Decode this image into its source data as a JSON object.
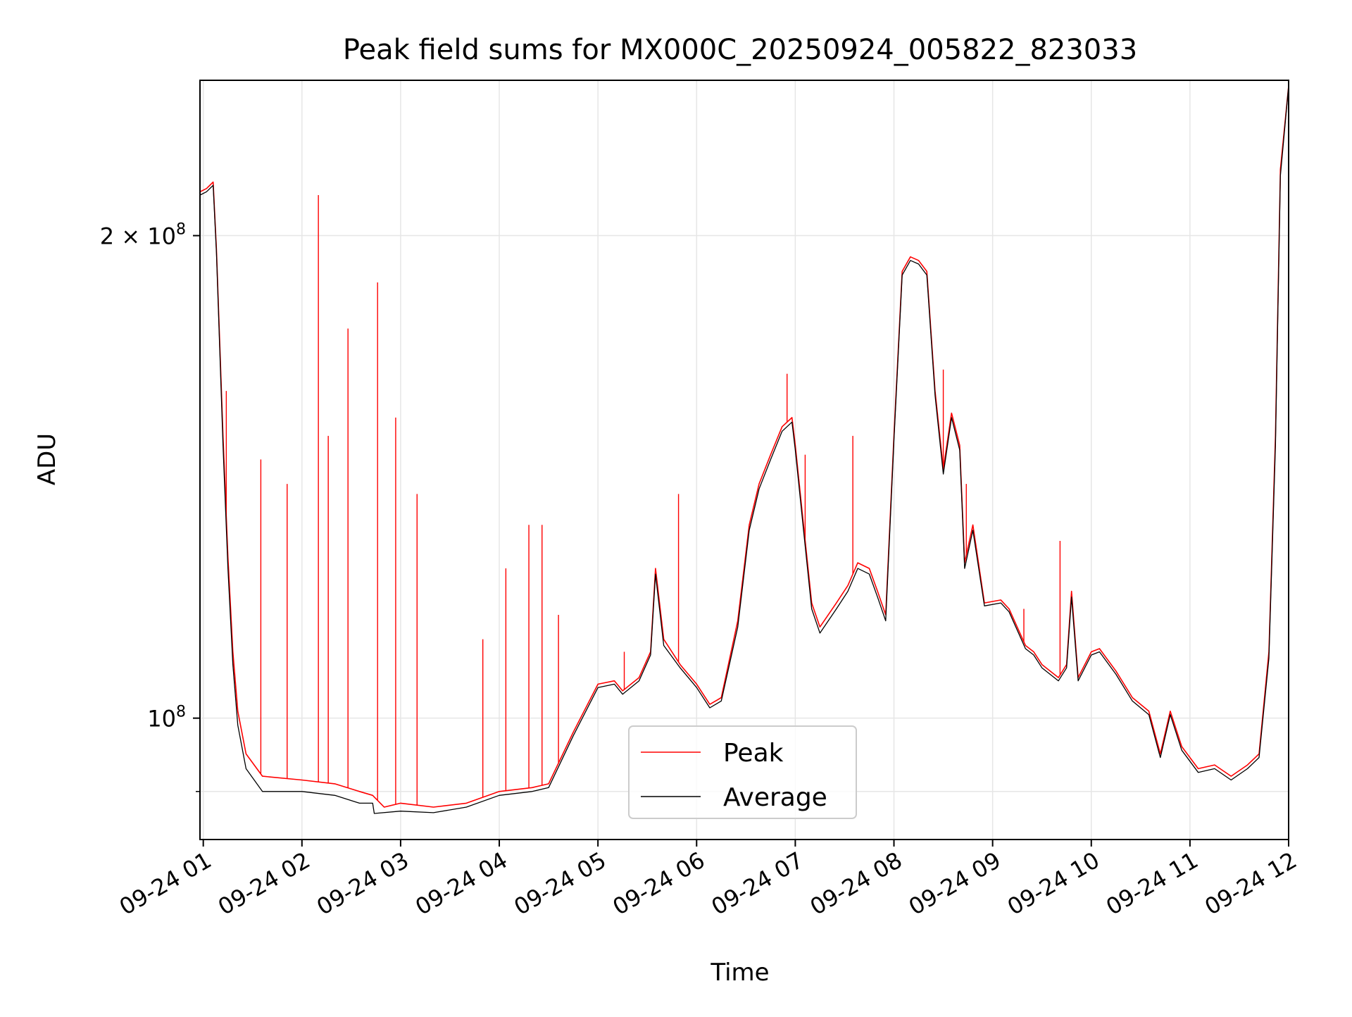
{
  "chart_data": {
    "type": "line",
    "title": "Peak field sums for MX000C_20250924_005822_823033",
    "xlabel": "Time",
    "ylabel": "ADU",
    "yscale": "log",
    "x_is_time": true,
    "xlim": [
      "2025-09-24T00:58",
      "2025-09-24T12:00"
    ],
    "ylim": [
      84000000,
      250000000
    ],
    "x_ticks": [
      {
        "t": "2025-09-24T01:00",
        "label": "09-24 01"
      },
      {
        "t": "2025-09-24T02:00",
        "label": "09-24 02"
      },
      {
        "t": "2025-09-24T03:00",
        "label": "09-24 03"
      },
      {
        "t": "2025-09-24T04:00",
        "label": "09-24 04"
      },
      {
        "t": "2025-09-24T05:00",
        "label": "09-24 05"
      },
      {
        "t": "2025-09-24T06:00",
        "label": "09-24 06"
      },
      {
        "t": "2025-09-24T07:00",
        "label": "09-24 07"
      },
      {
        "t": "2025-09-24T08:00",
        "label": "09-24 08"
      },
      {
        "t": "2025-09-24T09:00",
        "label": "09-24 09"
      },
      {
        "t": "2025-09-24T10:00",
        "label": "09-24 10"
      },
      {
        "t": "2025-09-24T11:00",
        "label": "09-24 11"
      },
      {
        "t": "2025-09-24T12:00",
        "label": "09-24 12"
      }
    ],
    "y_major_ticks": [
      {
        "value": 100000000,
        "base": "10",
        "exp": "8",
        "mantissa": ""
      },
      {
        "value": 200000000,
        "base": "10",
        "exp": "8",
        "mantissa": "2"
      }
    ],
    "y_minor_gridlines": [
      90000000
    ],
    "grid": true,
    "legend_placement": "lower-center",
    "series": [
      {
        "name": "Peak",
        "color": "#ff0000",
        "points": [
          [
            "2025-09-24T00:58",
            213000000
          ],
          [
            "2025-09-24T01:02",
            214000000
          ],
          [
            "2025-09-24T01:06",
            216000000
          ],
          [
            "2025-09-24T01:08",
            196000000
          ],
          [
            "2025-09-24T01:12",
            150000000
          ],
          [
            "2025-09-24T01:15",
            126000000
          ],
          [
            "2025-09-24T01:18",
            110000000
          ],
          [
            "2025-09-24T01:21",
            101000000
          ],
          [
            "2025-09-24T01:26",
            95000000
          ],
          [
            "2025-09-24T01:36",
            92000000
          ],
          [
            "2025-09-24T02:00",
            91500000
          ],
          [
            "2025-09-24T02:20",
            91000000
          ],
          [
            "2025-09-24T02:35",
            90000000
          ],
          [
            "2025-09-24T02:43",
            89500000
          ],
          [
            "2025-09-24T02:50",
            88000000
          ],
          [
            "2025-09-24T03:00",
            88500000
          ],
          [
            "2025-09-24T03:20",
            88000000
          ],
          [
            "2025-09-24T03:40",
            88500000
          ],
          [
            "2025-09-24T04:00",
            90000000
          ],
          [
            "2025-09-24T04:20",
            90500000
          ],
          [
            "2025-09-24T04:30",
            91000000
          ],
          [
            "2025-09-24T04:45",
            98000000
          ],
          [
            "2025-09-24T05:00",
            105000000
          ],
          [
            "2025-09-24T05:10",
            105500000
          ],
          [
            "2025-09-24T05:15",
            104000000
          ],
          [
            "2025-09-24T05:25",
            106000000
          ],
          [
            "2025-09-24T05:32",
            110000000
          ],
          [
            "2025-09-24T05:35",
            124000000
          ],
          [
            "2025-09-24T05:40",
            112000000
          ],
          [
            "2025-09-24T05:50",
            108000000
          ],
          [
            "2025-09-24T06:00",
            105000000
          ],
          [
            "2025-09-24T06:08",
            102000000
          ],
          [
            "2025-09-24T06:15",
            103000000
          ],
          [
            "2025-09-24T06:25",
            115000000
          ],
          [
            "2025-09-24T06:32",
            132000000
          ],
          [
            "2025-09-24T06:38",
            140000000
          ],
          [
            "2025-09-24T06:45",
            146000000
          ],
          [
            "2025-09-24T06:52",
            152000000
          ],
          [
            "2025-09-24T06:58",
            154000000
          ],
          [
            "2025-09-24T07:00",
            148000000
          ],
          [
            "2025-09-24T07:05",
            132000000
          ],
          [
            "2025-09-24T07:10",
            118000000
          ],
          [
            "2025-09-24T07:15",
            114000000
          ],
          [
            "2025-09-24T07:25",
            118000000
          ],
          [
            "2025-09-24T07:32",
            121000000
          ],
          [
            "2025-09-24T07:38",
            125000000
          ],
          [
            "2025-09-24T07:45",
            124000000
          ],
          [
            "2025-09-24T07:50",
            120000000
          ],
          [
            "2025-09-24T07:55",
            116000000
          ],
          [
            "2025-09-24T08:00",
            150000000
          ],
          [
            "2025-09-24T08:05",
            190000000
          ],
          [
            "2025-09-24T08:10",
            194000000
          ],
          [
            "2025-09-24T08:15",
            193000000
          ],
          [
            "2025-09-24T08:20",
            190000000
          ],
          [
            "2025-09-24T08:25",
            160000000
          ],
          [
            "2025-09-24T08:30",
            143000000
          ],
          [
            "2025-09-24T08:35",
            155000000
          ],
          [
            "2025-09-24T08:40",
            148000000
          ],
          [
            "2025-09-24T08:43",
            125000000
          ],
          [
            "2025-09-24T08:48",
            132000000
          ],
          [
            "2025-09-24T08:55",
            118000000
          ],
          [
            "2025-09-24T09:05",
            118500000
          ],
          [
            "2025-09-24T09:10",
            117000000
          ],
          [
            "2025-09-24T09:20",
            111000000
          ],
          [
            "2025-09-24T09:25",
            110000000
          ],
          [
            "2025-09-24T09:30",
            108000000
          ],
          [
            "2025-09-24T09:40",
            106000000
          ],
          [
            "2025-09-24T09:45",
            108000000
          ],
          [
            "2025-09-24T09:48",
            120000000
          ],
          [
            "2025-09-24T09:52",
            106000000
          ],
          [
            "2025-09-24T10:00",
            110000000
          ],
          [
            "2025-09-24T10:05",
            110500000
          ],
          [
            "2025-09-24T10:15",
            107000000
          ],
          [
            "2025-09-24T10:25",
            103000000
          ],
          [
            "2025-09-24T10:35",
            101000000
          ],
          [
            "2025-09-24T10:42",
            95000000
          ],
          [
            "2025-09-24T10:48",
            101000000
          ],
          [
            "2025-09-24T10:55",
            96000000
          ],
          [
            "2025-09-24T11:05",
            93000000
          ],
          [
            "2025-09-24T11:15",
            93500000
          ],
          [
            "2025-09-24T11:25",
            92000000
          ],
          [
            "2025-09-24T11:35",
            93500000
          ],
          [
            "2025-09-24T11:42",
            95000000
          ],
          [
            "2025-09-24T11:48",
            110000000
          ],
          [
            "2025-09-24T11:52",
            150000000
          ],
          [
            "2025-09-24T11:55",
            220000000
          ],
          [
            "2025-09-24T12:00",
            248000000
          ]
        ],
        "spikes": [
          [
            "2025-09-24T01:14",
            160000000
          ],
          [
            "2025-09-24T01:35",
            145000000
          ],
          [
            "2025-09-24T01:51",
            140000000
          ],
          [
            "2025-09-24T02:10",
            212000000
          ],
          [
            "2025-09-24T02:16",
            150000000
          ],
          [
            "2025-09-24T02:28",
            175000000
          ],
          [
            "2025-09-24T02:46",
            187000000
          ],
          [
            "2025-09-24T02:57",
            154000000
          ],
          [
            "2025-09-24T03:10",
            138000000
          ],
          [
            "2025-09-24T03:50",
            112000000
          ],
          [
            "2025-09-24T04:04",
            124000000
          ],
          [
            "2025-09-24T04:18",
            132000000
          ],
          [
            "2025-09-24T04:26",
            132000000
          ],
          [
            "2025-09-24T04:36",
            116000000
          ],
          [
            "2025-09-24T05:16",
            110000000
          ],
          [
            "2025-09-24T05:49",
            138000000
          ],
          [
            "2025-09-24T06:55",
            164000000
          ],
          [
            "2025-09-24T07:06",
            146000000
          ],
          [
            "2025-09-24T07:35",
            150000000
          ],
          [
            "2025-09-24T08:30",
            165000000
          ],
          [
            "2025-09-24T08:44",
            140000000
          ],
          [
            "2025-09-24T09:19",
            117000000
          ],
          [
            "2025-09-24T09:41",
            129000000
          ]
        ]
      },
      {
        "name": "Average",
        "color": "#000000",
        "points": [
          [
            "2025-09-24T00:58",
            212000000
          ],
          [
            "2025-09-24T01:02",
            213000000
          ],
          [
            "2025-09-24T01:06",
            215000000
          ],
          [
            "2025-09-24T01:08",
            195000000
          ],
          [
            "2025-09-24T01:12",
            148000000
          ],
          [
            "2025-09-24T01:15",
            124000000
          ],
          [
            "2025-09-24T01:18",
            108000000
          ],
          [
            "2025-09-24T01:21",
            99000000
          ],
          [
            "2025-09-24T01:26",
            93000000
          ],
          [
            "2025-09-24T01:36",
            90000000
          ],
          [
            "2025-09-24T02:00",
            90000000
          ],
          [
            "2025-09-24T02:20",
            89500000
          ],
          [
            "2025-09-24T02:35",
            88500000
          ],
          [
            "2025-09-24T02:43",
            88500000
          ],
          [
            "2025-09-24T02:44",
            87200000
          ],
          [
            "2025-09-24T03:00",
            87500000
          ],
          [
            "2025-09-24T03:20",
            87300000
          ],
          [
            "2025-09-24T03:40",
            88000000
          ],
          [
            "2025-09-24T04:00",
            89500000
          ],
          [
            "2025-09-24T04:20",
            90000000
          ],
          [
            "2025-09-24T04:30",
            90500000
          ],
          [
            "2025-09-24T04:45",
            97500000
          ],
          [
            "2025-09-24T05:00",
            104500000
          ],
          [
            "2025-09-24T05:10",
            105000000
          ],
          [
            "2025-09-24T05:15",
            103500000
          ],
          [
            "2025-09-24T05:25",
            105500000
          ],
          [
            "2025-09-24T05:32",
            109500000
          ],
          [
            "2025-09-24T05:35",
            123000000
          ],
          [
            "2025-09-24T05:40",
            111000000
          ],
          [
            "2025-09-24T05:50",
            107500000
          ],
          [
            "2025-09-24T06:00",
            104500000
          ],
          [
            "2025-09-24T06:08",
            101500000
          ],
          [
            "2025-09-24T06:15",
            102500000
          ],
          [
            "2025-09-24T06:25",
            114000000
          ],
          [
            "2025-09-24T06:32",
            131000000
          ],
          [
            "2025-09-24T06:38",
            139000000
          ],
          [
            "2025-09-24T06:45",
            145000000
          ],
          [
            "2025-09-24T06:52",
            151000000
          ],
          [
            "2025-09-24T06:58",
            153000000
          ],
          [
            "2025-09-24T07:00",
            147000000
          ],
          [
            "2025-09-24T07:05",
            131000000
          ],
          [
            "2025-09-24T07:10",
            117000000
          ],
          [
            "2025-09-24T07:15",
            113000000
          ],
          [
            "2025-09-24T07:25",
            117000000
          ],
          [
            "2025-09-24T07:32",
            120000000
          ],
          [
            "2025-09-24T07:38",
            124000000
          ],
          [
            "2025-09-24T07:45",
            123000000
          ],
          [
            "2025-09-24T07:50",
            119000000
          ],
          [
            "2025-09-24T07:55",
            115000000
          ],
          [
            "2025-09-24T08:00",
            149000000
          ],
          [
            "2025-09-24T08:05",
            189000000
          ],
          [
            "2025-09-24T08:10",
            193000000
          ],
          [
            "2025-09-24T08:15",
            192000000
          ],
          [
            "2025-09-24T08:20",
            189000000
          ],
          [
            "2025-09-24T08:25",
            159000000
          ],
          [
            "2025-09-24T08:30",
            142000000
          ],
          [
            "2025-09-24T08:35",
            154000000
          ],
          [
            "2025-09-24T08:40",
            147000000
          ],
          [
            "2025-09-24T08:43",
            124000000
          ],
          [
            "2025-09-24T08:48",
            131000000
          ],
          [
            "2025-09-24T08:55",
            117500000
          ],
          [
            "2025-09-24T09:05",
            118000000
          ],
          [
            "2025-09-24T09:10",
            116500000
          ],
          [
            "2025-09-24T09:20",
            110500000
          ],
          [
            "2025-09-24T09:25",
            109500000
          ],
          [
            "2025-09-24T09:30",
            107500000
          ],
          [
            "2025-09-24T09:40",
            105500000
          ],
          [
            "2025-09-24T09:45",
            107500000
          ],
          [
            "2025-09-24T09:48",
            119000000
          ],
          [
            "2025-09-24T09:52",
            105500000
          ],
          [
            "2025-09-24T10:00",
            109500000
          ],
          [
            "2025-09-24T10:05",
            110000000
          ],
          [
            "2025-09-24T10:15",
            106500000
          ],
          [
            "2025-09-24T10:25",
            102500000
          ],
          [
            "2025-09-24T10:35",
            100500000
          ],
          [
            "2025-09-24T10:42",
            94500000
          ],
          [
            "2025-09-24T10:48",
            100500000
          ],
          [
            "2025-09-24T10:55",
            95500000
          ],
          [
            "2025-09-24T11:05",
            92500000
          ],
          [
            "2025-09-24T11:15",
            93000000
          ],
          [
            "2025-09-24T11:25",
            91500000
          ],
          [
            "2025-09-24T11:35",
            93000000
          ],
          [
            "2025-09-24T11:42",
            94500000
          ],
          [
            "2025-09-24T11:48",
            109000000
          ],
          [
            "2025-09-24T11:52",
            148000000
          ],
          [
            "2025-09-24T11:55",
            218000000
          ],
          [
            "2025-09-24T12:00",
            248000000
          ]
        ]
      }
    ]
  }
}
